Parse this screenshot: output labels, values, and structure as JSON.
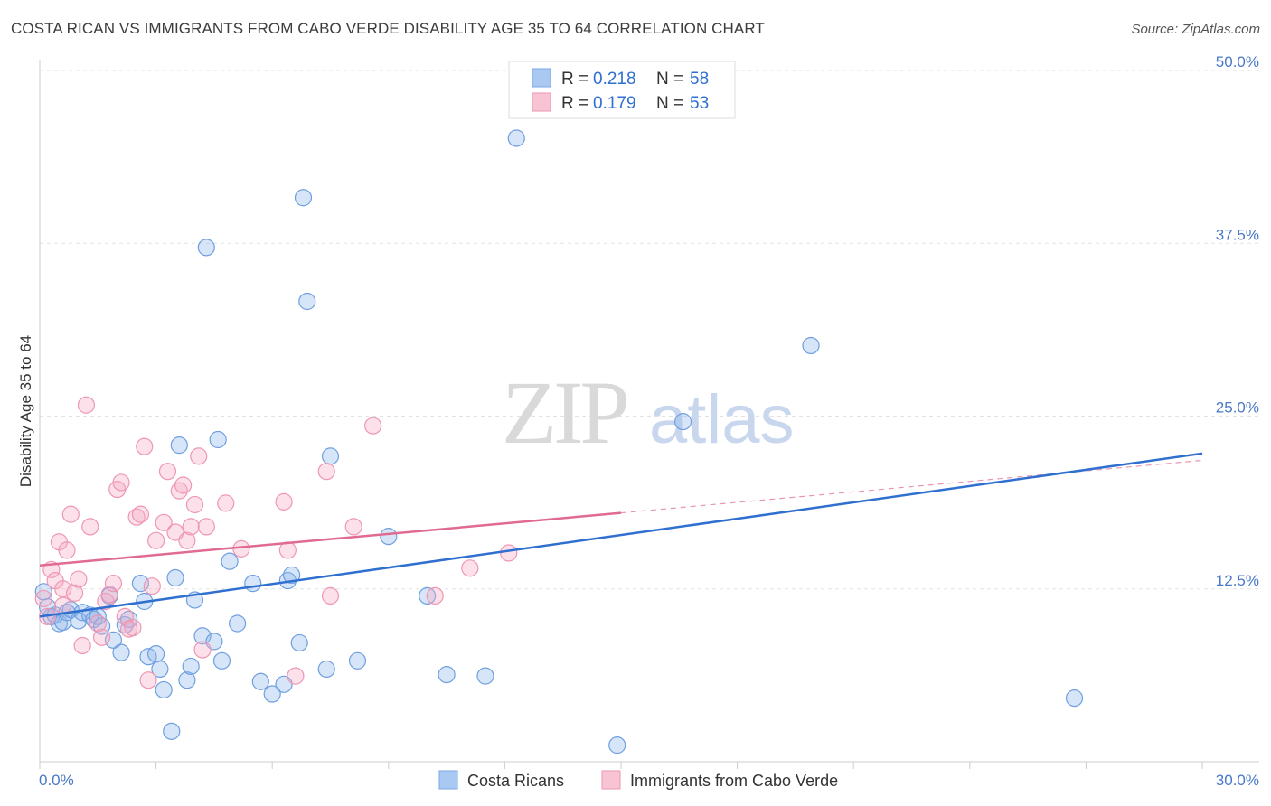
{
  "title": "COSTA RICAN VS IMMIGRANTS FROM CABO VERDE DISABILITY AGE 35 TO 64 CORRELATION CHART",
  "source": "Source: ZipAtlas.com",
  "watermark": {
    "zip": "ZIP",
    "atlas": "atlas"
  },
  "legend_top": [
    {
      "r_label": "R =",
      "r_value": "0.218",
      "n_label": "N =",
      "n_value": "58",
      "color": "#a9c8f2",
      "stroke": "#7aa8e6"
    },
    {
      "r_label": "R =",
      "r_value": "0.179",
      "n_label": "N =",
      "n_value": "53",
      "color": "#f8c3d3",
      "stroke": "#ee97b2"
    }
  ],
  "legend_bottom": [
    {
      "label": "Costa Ricans",
      "color": "#a9c8f2",
      "stroke": "#7aa8e6"
    },
    {
      "label": "Immigrants from Cabo Verde",
      "color": "#f8c3d3",
      "stroke": "#ee97b2"
    }
  ],
  "colors": {
    "blue_fill": "rgba(140,180,235,0.35)",
    "blue_stroke": "#6f9fe0",
    "blue_line": "#2f6fd0",
    "pink_fill": "rgba(245,170,195,0.35)",
    "pink_stroke": "#ee97b2",
    "pink_line": "#e06a90",
    "grid": "#e2e2e2",
    "axis_text": "#4a78c8"
  },
  "chart_data": {
    "type": "scatter",
    "title": "COSTA RICAN VS IMMIGRANTS FROM CABO VERDE DISABILITY AGE 35 TO 64 CORRELATION CHART",
    "xlabel": "",
    "ylabel": "Disability Age 35 to 64",
    "xlim": [
      0,
      30
    ],
    "ylim": [
      0,
      50
    ],
    "x_tick_labels": [
      "0.0%",
      "30.0%"
    ],
    "y_ticks": [
      12.5,
      25.0,
      37.5,
      50.0
    ],
    "y_tick_labels": [
      "12.5%",
      "25.0%",
      "37.5%",
      "50.0%"
    ],
    "grid": "horizontal dashed",
    "legend": "top-center",
    "series": [
      {
        "name": "Costa Ricans",
        "r": 0.218,
        "n": 58,
        "trend": {
          "x": [
            0,
            30
          ],
          "y": [
            10.5,
            22.3
          ]
        },
        "points": [
          [
            0.1,
            12.3
          ],
          [
            0.2,
            11.2
          ],
          [
            0.3,
            10.5
          ],
          [
            0.4,
            10.6
          ],
          [
            0.5,
            10.0
          ],
          [
            0.6,
            10.1
          ],
          [
            0.7,
            10.8
          ],
          [
            0.8,
            11.0
          ],
          [
            1.0,
            10.2
          ],
          [
            1.1,
            10.8
          ],
          [
            1.3,
            10.6
          ],
          [
            1.4,
            10.3
          ],
          [
            1.5,
            10.5
          ],
          [
            1.6,
            9.8
          ],
          [
            1.8,
            12.0
          ],
          [
            1.9,
            8.8
          ],
          [
            2.1,
            7.9
          ],
          [
            2.2,
            9.9
          ],
          [
            2.3,
            10.3
          ],
          [
            2.6,
            12.9
          ],
          [
            2.7,
            11.6
          ],
          [
            2.8,
            7.6
          ],
          [
            3.0,
            7.8
          ],
          [
            3.1,
            6.7
          ],
          [
            3.2,
            5.2
          ],
          [
            3.4,
            2.2
          ],
          [
            3.5,
            13.3
          ],
          [
            3.6,
            22.9
          ],
          [
            3.8,
            5.9
          ],
          [
            3.9,
            6.9
          ],
          [
            4.0,
            11.7
          ],
          [
            4.2,
            9.1
          ],
          [
            4.3,
            37.2
          ],
          [
            4.5,
            8.7
          ],
          [
            4.6,
            23.3
          ],
          [
            4.7,
            7.3
          ],
          [
            4.9,
            14.5
          ],
          [
            5.1,
            10.0
          ],
          [
            5.5,
            12.9
          ],
          [
            5.7,
            5.8
          ],
          [
            6.0,
            4.9
          ],
          [
            6.3,
            5.6
          ],
          [
            6.4,
            13.1
          ],
          [
            6.5,
            13.5
          ],
          [
            6.7,
            8.6
          ],
          [
            6.8,
            40.8
          ],
          [
            6.9,
            33.3
          ],
          [
            7.4,
            6.7
          ],
          [
            7.5,
            22.1
          ],
          [
            8.2,
            7.3
          ],
          [
            9.0,
            16.3
          ],
          [
            10.0,
            12.0
          ],
          [
            10.5,
            6.3
          ],
          [
            11.5,
            6.2
          ],
          [
            12.3,
            45.1
          ],
          [
            14.9,
            1.2
          ],
          [
            16.6,
            24.6
          ],
          [
            19.9,
            30.1
          ],
          [
            26.7,
            4.6
          ]
        ]
      },
      {
        "name": "Immigrants from Cabo Verde",
        "r": 0.179,
        "n": 53,
        "trend": {
          "x": [
            0,
            15
          ],
          "y": [
            14.2,
            18.0
          ]
        },
        "trend_dashed": {
          "x": [
            15,
            30
          ],
          "y": [
            18.0,
            21.8
          ]
        },
        "points": [
          [
            0.1,
            11.8
          ],
          [
            0.2,
            10.5
          ],
          [
            0.3,
            13.9
          ],
          [
            0.4,
            13.1
          ],
          [
            0.5,
            15.9
          ],
          [
            0.6,
            12.5
          ],
          [
            0.7,
            15.3
          ],
          [
            0.8,
            17.9
          ],
          [
            0.9,
            12.2
          ],
          [
            1.0,
            13.2
          ],
          [
            1.1,
            8.4
          ],
          [
            1.2,
            25.8
          ],
          [
            1.3,
            17.0
          ],
          [
            1.5,
            10.0
          ],
          [
            1.6,
            9.0
          ],
          [
            1.7,
            11.6
          ],
          [
            1.8,
            12.1
          ],
          [
            1.9,
            12.9
          ],
          [
            2.0,
            19.7
          ],
          [
            2.1,
            20.2
          ],
          [
            2.2,
            10.5
          ],
          [
            2.4,
            9.7
          ],
          [
            2.5,
            17.7
          ],
          [
            2.6,
            17.9
          ],
          [
            2.7,
            22.8
          ],
          [
            2.8,
            5.9
          ],
          [
            2.9,
            12.7
          ],
          [
            3.0,
            16.0
          ],
          [
            3.2,
            17.3
          ],
          [
            3.3,
            21.0
          ],
          [
            3.5,
            16.6
          ],
          [
            3.6,
            19.6
          ],
          [
            3.7,
            20.0
          ],
          [
            3.8,
            16.0
          ],
          [
            3.9,
            17.0
          ],
          [
            4.0,
            18.6
          ],
          [
            4.1,
            22.1
          ],
          [
            4.2,
            8.1
          ],
          [
            4.3,
            17.0
          ],
          [
            4.8,
            18.7
          ],
          [
            5.2,
            15.4
          ],
          [
            6.3,
            18.8
          ],
          [
            6.4,
            15.3
          ],
          [
            6.6,
            6.2
          ],
          [
            7.4,
            21.0
          ],
          [
            7.5,
            12.0
          ],
          [
            8.1,
            17.0
          ],
          [
            8.6,
            24.3
          ],
          [
            10.2,
            12.0
          ],
          [
            11.1,
            14.0
          ],
          [
            12.1,
            15.1
          ],
          [
            2.3,
            9.6
          ],
          [
            0.6,
            11.3
          ]
        ]
      }
    ]
  }
}
